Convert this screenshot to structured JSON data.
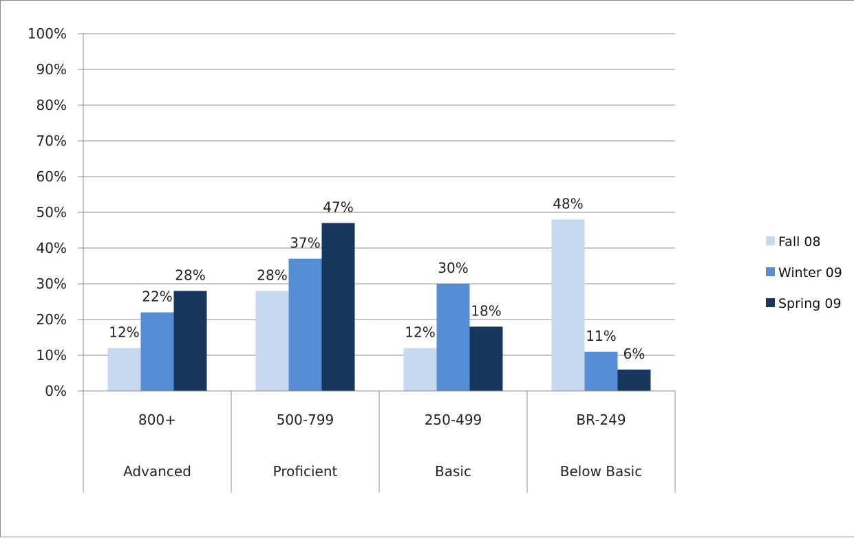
{
  "chart_data": {
    "type": "bar",
    "categories": [
      "800+",
      "500-799",
      "250-499",
      "BR-249"
    ],
    "category_groups": [
      "Advanced",
      "Proficient",
      "Basic",
      "Below Basic"
    ],
    "series": [
      {
        "name": "Fall 08",
        "values": [
          12,
          28,
          12,
          48
        ],
        "color": "#c6d9f1"
      },
      {
        "name": "Winter 09",
        "values": [
          22,
          37,
          30,
          11
        ],
        "color": "#558ed5"
      },
      {
        "name": "Spring 09",
        "values": [
          28,
          47,
          18,
          6
        ],
        "color": "#17375e"
      }
    ],
    "data_labels": [
      [
        "12%",
        "28%",
        "12%",
        "48%"
      ],
      [
        "22%",
        "37%",
        "30%",
        "11%"
      ],
      [
        "28%",
        "47%",
        "18%",
        "6%"
      ]
    ],
    "y_ticks": [
      "0%",
      "10%",
      "20%",
      "30%",
      "40%",
      "50%",
      "60%",
      "70%",
      "80%",
      "90%",
      "100%"
    ],
    "ylim": [
      0,
      100
    ],
    "grid": true,
    "legend_position": "right",
    "title": "",
    "xlabel": "",
    "ylabel": ""
  }
}
